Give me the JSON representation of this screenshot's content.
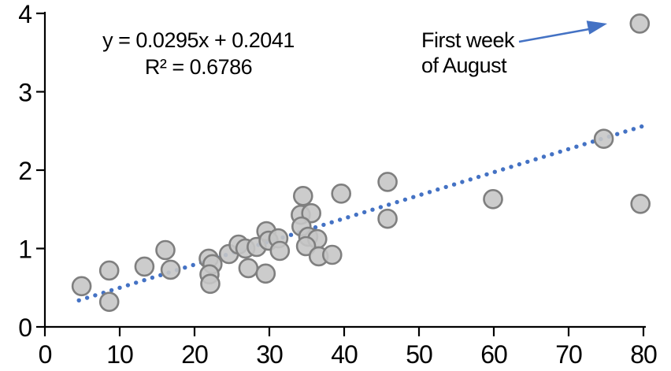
{
  "chart_data": {
    "type": "scatter",
    "equation_label": "y = 0.0295x + 0.2041",
    "r_squared_label": "R² = 0.6786",
    "annotation": {
      "line1": "First week",
      "line2": "of August",
      "target_point": [
        79.5,
        3.87
      ]
    },
    "xlim": [
      0,
      80
    ],
    "ylim": [
      0,
      4
    ],
    "x_ticks": [
      0,
      10,
      20,
      30,
      40,
      50,
      60,
      70,
      80
    ],
    "y_ticks": [
      0,
      1,
      2,
      3,
      4
    ],
    "grid": false,
    "legend": false,
    "points": [
      [
        4.9,
        0.52
      ],
      [
        8.6,
        0.32
      ],
      [
        8.6,
        0.72
      ],
      [
        13.3,
        0.77
      ],
      [
        16.1,
        0.98
      ],
      [
        16.8,
        0.73
      ],
      [
        21.9,
        0.87
      ],
      [
        22.4,
        0.8
      ],
      [
        22.0,
        0.67
      ],
      [
        22.1,
        0.55
      ],
      [
        24.6,
        0.93
      ],
      [
        25.9,
        1.05
      ],
      [
        26.8,
        1.0
      ],
      [
        27.2,
        0.75
      ],
      [
        28.3,
        1.02
      ],
      [
        29.6,
        1.22
      ],
      [
        29.9,
        1.1
      ],
      [
        29.5,
        0.68
      ],
      [
        31.2,
        1.13
      ],
      [
        31.4,
        0.97
      ],
      [
        34.5,
        1.67
      ],
      [
        34.2,
        1.43
      ],
      [
        35.6,
        1.45
      ],
      [
        34.3,
        1.28
      ],
      [
        35.2,
        1.15
      ],
      [
        36.4,
        1.12
      ],
      [
        34.9,
        1.03
      ],
      [
        36.6,
        0.9
      ],
      [
        38.4,
        0.92
      ],
      [
        39.6,
        1.7
      ],
      [
        45.8,
        1.85
      ],
      [
        45.8,
        1.38
      ],
      [
        59.9,
        1.63
      ],
      [
        74.7,
        2.4
      ],
      [
        79.5,
        3.87
      ],
      [
        79.6,
        1.57
      ]
    ],
    "trendline": {
      "type": "linear",
      "slope": 0.0295,
      "intercept": 0.2041,
      "style": "dotted",
      "x_start": 4.55,
      "x_end": 80.2
    },
    "colors": {
      "accent_blue": "#4472C4",
      "marker_fill": "#C6C6C6",
      "marker_stroke": "#7F7F7F",
      "axis": "#000000",
      "text": "#000000"
    }
  }
}
